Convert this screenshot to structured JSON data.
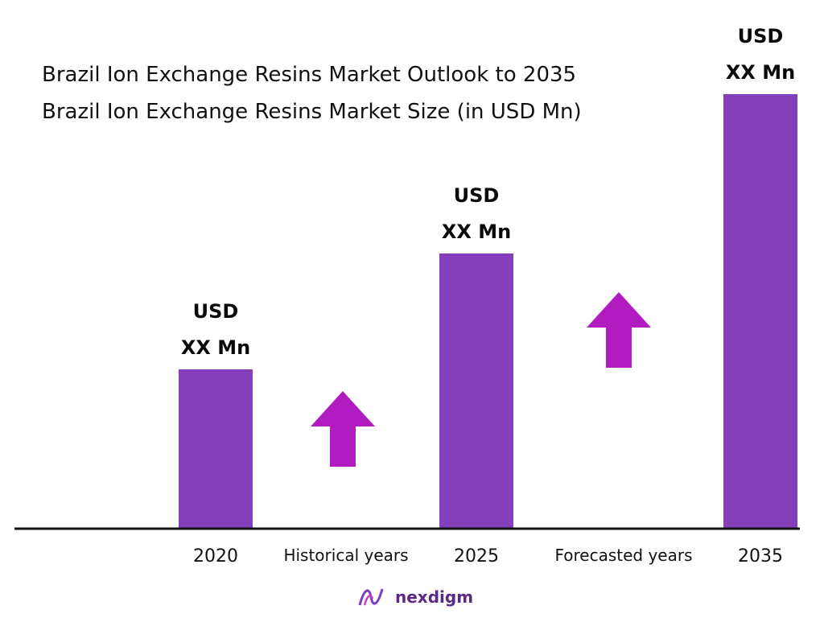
{
  "header": {
    "title": "Brazil  Ion Exchange Resins Market Outlook to 2035",
    "subtitle": "Brazil Ion Exchange Resins Market Size (in USD Mn)"
  },
  "chart_data": {
    "type": "bar",
    "categories": [
      "2020",
      "2025",
      "2035"
    ],
    "values": [
      33,
      57,
      90
    ],
    "ylim": [
      0,
      100
    ],
    "bar_labels": [
      {
        "line1": "USD",
        "line2": "XX Mn"
      },
      {
        "line1": "USD",
        "line2": "XX Mn"
      },
      {
        "line1": "USD",
        "line2": "XX Mn"
      }
    ],
    "period_labels": [
      "Historical years",
      "Forecasted years"
    ],
    "grid": false,
    "legend": "none",
    "colors": {
      "bar": "#8440ba",
      "arrow": "#b01cbf",
      "axis": "#111111"
    }
  },
  "logo": {
    "text": "nexdigm",
    "icon": "nexdigm-wave-icon"
  }
}
